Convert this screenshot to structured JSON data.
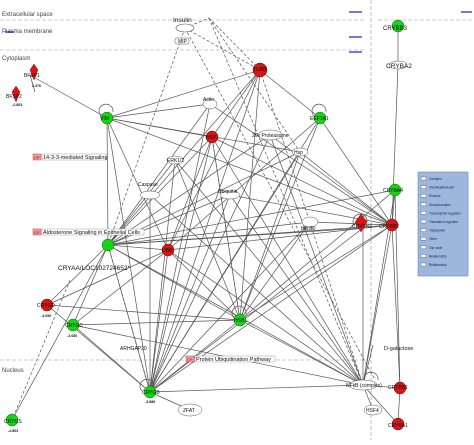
{
  "compartments": {
    "extracellular": "Extracellular space",
    "plasma_membrane": "Plasma membrane",
    "cytoplasm": "Cytoplasm",
    "nucleus": "Nucleus"
  },
  "nodes": {
    "insulin": "Insulin",
    "mip": "MIP",
    "bfsp1": "BFSP1",
    "bfsp2": "BFSP2",
    "bfsp2_val": "-2.803",
    "bfsp1_val": "2.376",
    "tubb": "TUBB",
    "vim": "VIM",
    "eef1a1": "EEF1A1",
    "actin": "Actin",
    "hspa": "HSP...",
    "proteasome": "26s Proteasome",
    "erk": "ERK1/2",
    "hsp": "Hsp",
    "caspase": "Caspase",
    "ubiquitin": "Ubiquitin",
    "cryba4": "CRYBA4",
    "crybb2": "CRYBB2",
    "crybb3": "CRYBB3",
    "crybb3_top": "CRYBB3",
    "cryba2": "CRYBA2",
    "crym": "CRYM",
    "hsp90": "Hsp90",
    "ubb": "UBB",
    "cryaa": "CRYAA/LOC102724652*",
    "crygd": "CRYGD",
    "crygd_val": "-3.050",
    "crygc": "CRYGC",
    "crygc_val": "-3.680",
    "hsbp": "HSB...",
    "arhgap": "ARHGAP20",
    "crygb": "CRYGB",
    "crygb_val": "-3.886",
    "zfat": "ZFAT",
    "nfkb": "NFkB (complex)",
    "hsf4": "HSF4",
    "dgal": "D-galactose",
    "cryb1": "CRYBB1",
    "crya1": "CRYBA1",
    "crys": "CRYGS",
    "crys_val": "-2.803"
  },
  "pathways": {
    "p1": "14-3-3-mediated Signaling",
    "p2": "Aldosterone Signaling in Epithelial Cells",
    "p3": "Protein Ubiquitination Pathway",
    "cp_tag": "CP"
  },
  "legend": [
    "Complex",
    "Chemical/toxicant",
    "Enzyme",
    "Group/complex",
    "Transcription regulator",
    "Translation regulator",
    "Transporter",
    "Other",
    "Top node",
    "Relationship",
    "Relationship"
  ],
  "colors": {
    "up": "#d41616",
    "down": "#15d415",
    "neutral_fill": "#ffffff",
    "edge": "#555555",
    "legend_bg": "#9db6dc",
    "compartment_bar": "#1a1ae0"
  }
}
